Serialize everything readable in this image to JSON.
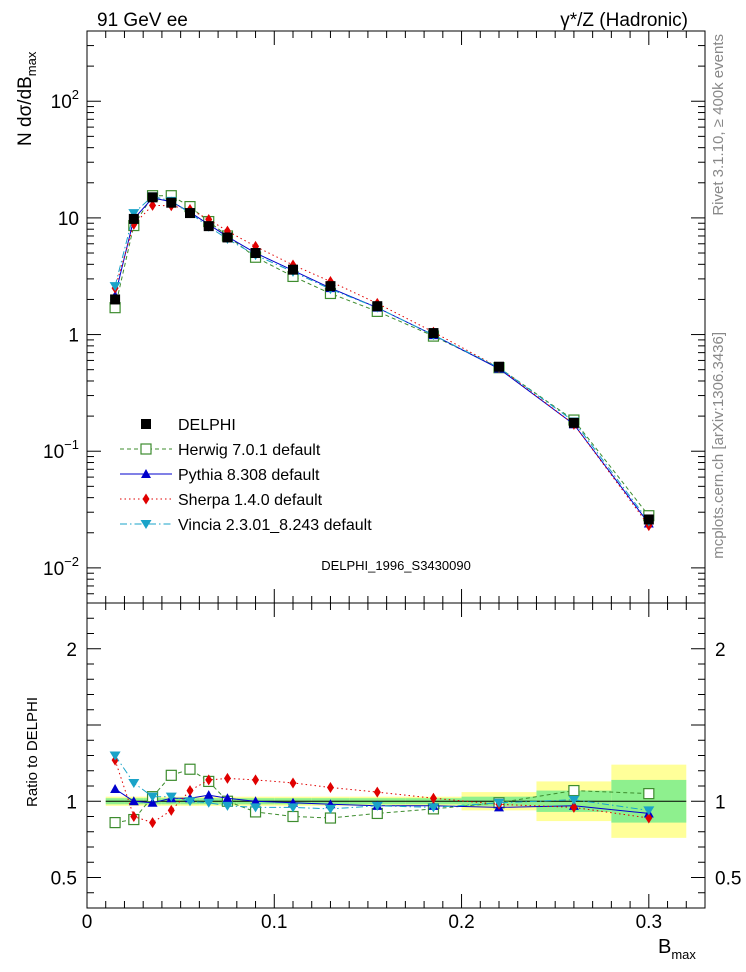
{
  "header": {
    "left": "91 GeV ee",
    "right": "γ*/Z (Hadronic)"
  },
  "side_labels": {
    "rivet": "Rivet 3.1.10, ≥ 400k events",
    "mcplots": "mcplots.cern.ch [arXiv:1306.3436]"
  },
  "watermark": "DELPHI_1996_S3430090",
  "chart_data": [
    {
      "type": "line",
      "panel": "main",
      "ylabel": "N dσ/dB",
      "ylabel_sub": "max",
      "yscale": "log",
      "xlim": [
        0,
        0.33
      ],
      "ylim": [
        0.005,
        400
      ],
      "yticks": [
        {
          "value": 0.01,
          "base": "10",
          "exp": "−2"
        },
        {
          "value": 0.1,
          "base": "10",
          "exp": "−1"
        },
        {
          "value": 1,
          "base": "1",
          "exp": ""
        },
        {
          "value": 10,
          "base": "10",
          "exp": ""
        },
        {
          "value": 100,
          "base": "10",
          "exp": "2"
        }
      ],
      "legend_position": "lower-left",
      "data": {
        "name": "DELPHI",
        "x": [
          0.015,
          0.025,
          0.035,
          0.045,
          0.055,
          0.065,
          0.075,
          0.09,
          0.11,
          0.13,
          0.155,
          0.185,
          0.22,
          0.26,
          0.3
        ],
        "y": [
          2.0,
          9.8,
          15.0,
          13.5,
          11.0,
          8.5,
          6.8,
          5.0,
          3.6,
          2.6,
          1.75,
          1.03,
          0.53,
          0.175,
          0.026
        ]
      },
      "series": [
        {
          "name": "Herwig 7.0.1 default",
          "color": "#3d8c2e",
          "dash": "4,3",
          "marker": "open-square",
          "x": [
            0.015,
            0.025,
            0.035,
            0.045,
            0.055,
            0.065,
            0.075,
            0.09,
            0.11,
            0.13,
            0.155,
            0.185,
            0.22,
            0.26,
            0.3
          ],
          "y": [
            1.7,
            8.6,
            15.5,
            15.5,
            12.5,
            9.3,
            7.0,
            4.6,
            3.15,
            2.25,
            1.58,
            0.97,
            0.52,
            0.185,
            0.028
          ]
        },
        {
          "name": "Pythia 8.308 default",
          "color": "#0000cc",
          "dash": "",
          "marker": "triangle-up",
          "x": [
            0.015,
            0.025,
            0.035,
            0.045,
            0.055,
            0.065,
            0.075,
            0.09,
            0.11,
            0.13,
            0.155,
            0.185,
            0.22,
            0.26,
            0.3
          ],
          "y": [
            2.15,
            9.8,
            14.8,
            13.8,
            11.2,
            8.8,
            6.9,
            5.0,
            3.55,
            2.5,
            1.7,
            0.99,
            0.51,
            0.17,
            0.024
          ]
        },
        {
          "name": "Sherpa 1.4.0 default",
          "color": "#e00000",
          "dash": "1.5,3",
          "marker": "diamond",
          "x": [
            0.015,
            0.025,
            0.035,
            0.045,
            0.055,
            0.065,
            0.075,
            0.09,
            0.11,
            0.13,
            0.155,
            0.185,
            0.22,
            0.26,
            0.3
          ],
          "y": [
            2.5,
            8.8,
            12.8,
            12.7,
            11.8,
            9.7,
            7.7,
            5.7,
            3.95,
            2.85,
            1.85,
            1.05,
            0.52,
            0.17,
            0.023
          ]
        },
        {
          "name": "Vincia 2.3.01_8.243 default",
          "color": "#1aa3c8",
          "dash": "7,3,1.5,3",
          "marker": "triangle-down",
          "x": [
            0.015,
            0.025,
            0.035,
            0.045,
            0.055,
            0.065,
            0.075,
            0.09,
            0.11,
            0.13,
            0.155,
            0.185,
            0.22,
            0.26,
            0.3
          ],
          "y": [
            2.6,
            11.0,
            15.3,
            14.0,
            11.0,
            8.4,
            6.6,
            4.8,
            3.45,
            2.45,
            1.7,
            0.99,
            0.52,
            0.18,
            0.025
          ]
        }
      ]
    },
    {
      "type": "line",
      "panel": "ratio",
      "ylabel": "Ratio to DELPHI",
      "xlabel": "B",
      "xlabel_sub": "max",
      "xlim": [
        0,
        0.33
      ],
      "ylim": [
        0.3,
        2.3
      ],
      "xticks": [
        {
          "value": 0,
          "label": "0"
        },
        {
          "value": 0.1,
          "label": "0.1"
        },
        {
          "value": 0.2,
          "label": "0.2"
        },
        {
          "value": 0.3,
          "label": "0.3"
        }
      ],
      "yticks": [
        {
          "value": 0.5,
          "label": "0.5"
        },
        {
          "value": 1,
          "label": "1"
        },
        {
          "value": 2,
          "label": "2"
        }
      ],
      "bands": {
        "bin_edges": [
          0.01,
          0.02,
          0.03,
          0.04,
          0.05,
          0.06,
          0.07,
          0.08,
          0.1,
          0.12,
          0.14,
          0.17,
          0.2,
          0.24,
          0.28,
          0.32
        ],
        "inner": [
          0.02,
          0.02,
          0.02,
          0.02,
          0.02,
          0.02,
          0.02,
          0.02,
          0.02,
          0.02,
          0.02,
          0.02,
          0.03,
          0.07,
          0.14
        ],
        "outer": [
          0.03,
          0.03,
          0.03,
          0.03,
          0.03,
          0.03,
          0.03,
          0.03,
          0.03,
          0.03,
          0.03,
          0.03,
          0.06,
          0.13,
          0.24
        ]
      },
      "series": [
        {
          "name": "Herwig 7.0.1 default",
          "color": "#3d8c2e",
          "dash": "4,3",
          "marker": "open-square",
          "x": [
            0.015,
            0.025,
            0.035,
            0.045,
            0.055,
            0.065,
            0.075,
            0.09,
            0.11,
            0.13,
            0.155,
            0.185,
            0.22,
            0.26,
            0.3
          ],
          "y": [
            0.86,
            0.88,
            1.03,
            1.17,
            1.21,
            1.13,
            1.0,
            0.93,
            0.9,
            0.89,
            0.92,
            0.95,
            0.99,
            1.07,
            1.05
          ]
        },
        {
          "name": "Pythia 8.308 default",
          "color": "#0000cc",
          "dash": "",
          "marker": "triangle-up",
          "x": [
            0.015,
            0.025,
            0.035,
            0.045,
            0.055,
            0.065,
            0.075,
            0.09,
            0.11,
            0.13,
            0.155,
            0.185,
            0.22,
            0.26,
            0.3
          ],
          "y": [
            1.08,
            1.0,
            0.99,
            1.02,
            1.02,
            1.04,
            1.02,
            1.0,
            0.99,
            0.98,
            0.97,
            0.97,
            0.96,
            0.97,
            0.92
          ]
        },
        {
          "name": "Sherpa 1.4.0 default",
          "color": "#e00000",
          "dash": "1.5,3",
          "marker": "diamond",
          "x": [
            0.015,
            0.025,
            0.035,
            0.045,
            0.055,
            0.065,
            0.075,
            0.09,
            0.11,
            0.13,
            0.155,
            0.185,
            0.22,
            0.26,
            0.3
          ],
          "y": [
            1.27,
            0.9,
            0.86,
            0.94,
            1.07,
            1.14,
            1.15,
            1.14,
            1.12,
            1.09,
            1.06,
            1.02,
            0.98,
            0.96,
            0.89
          ]
        },
        {
          "name": "Vincia 2.3.01_8.243 default",
          "color": "#1aa3c8",
          "dash": "7,3,1.5,3",
          "marker": "triangle-down",
          "x": [
            0.015,
            0.025,
            0.035,
            0.045,
            0.055,
            0.065,
            0.075,
            0.09,
            0.11,
            0.13,
            0.155,
            0.185,
            0.22,
            0.26,
            0.3
          ],
          "y": [
            1.3,
            1.12,
            1.03,
            1.03,
            1.0,
            0.99,
            0.97,
            0.96,
            0.96,
            0.95,
            0.97,
            0.96,
            0.99,
            1.01,
            0.94
          ]
        }
      ]
    }
  ]
}
